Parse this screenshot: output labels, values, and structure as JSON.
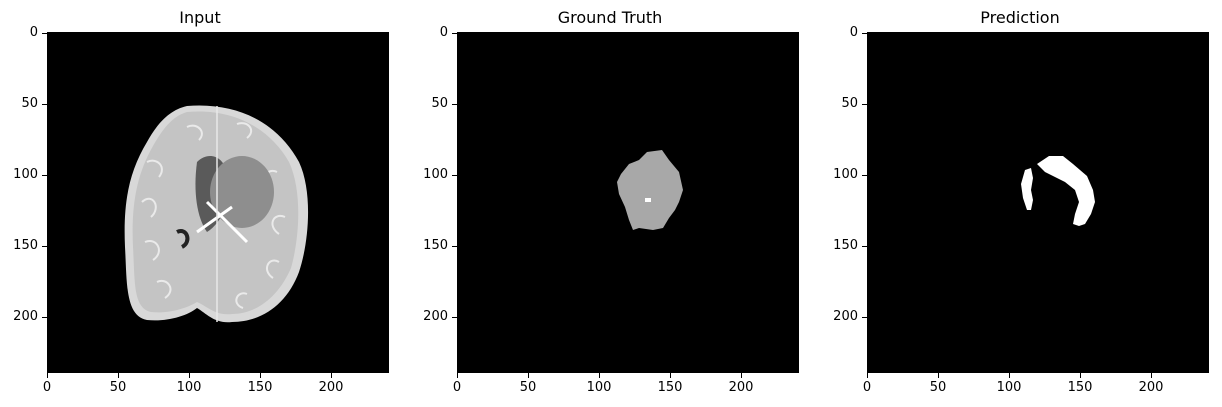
{
  "figure": {
    "panels": [
      {
        "title": "Input",
        "image": "brain MRI axial slice"
      },
      {
        "title": "Ground Truth",
        "image": "tumor segmentation mask"
      },
      {
        "title": "Prediction",
        "image": "predicted segmentation mask"
      }
    ],
    "axes": {
      "x_ticks": [
        "0",
        "50",
        "100",
        "150",
        "200"
      ],
      "y_ticks": [
        "0",
        "50",
        "100",
        "150",
        "200"
      ]
    }
  }
}
